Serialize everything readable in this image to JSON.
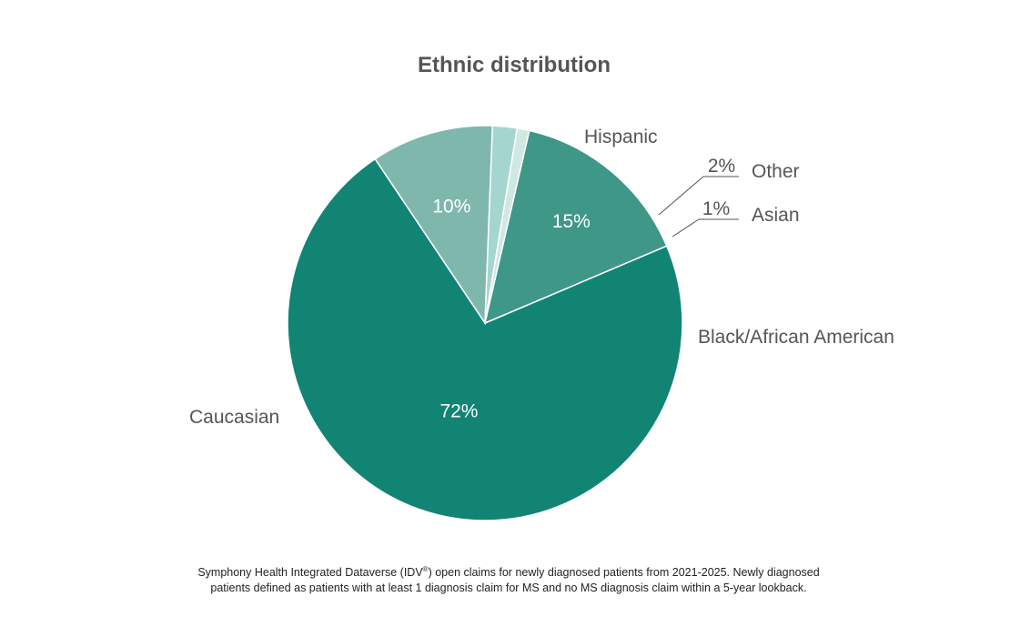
{
  "chart_data": {
    "type": "pie",
    "title": "Ethnic distribution",
    "slices": [
      {
        "label": "Caucasian",
        "value": 72,
        "value_label": "72%",
        "color": "#128474"
      },
      {
        "label": "Hispanic",
        "value": 10,
        "value_label": "10%",
        "color": "#80b7ad"
      },
      {
        "label": "Other",
        "value": 2,
        "value_label": "2%",
        "color": "#a5d5cf"
      },
      {
        "label": "Asian",
        "value": 1,
        "value_label": "1%",
        "color": "#cfe8e3"
      },
      {
        "label": "Black/African American",
        "value": 15,
        "value_label": "15%",
        "color": "#3e9787"
      }
    ]
  },
  "footnote": {
    "part1": "Symphony Health Integrated Dataverse (IDV",
    "registered": "®",
    "part2": ") open claims for newly diagnosed patients from 2021-2025. Newly diagnosed",
    "line2": "patients defined as patients with at least 1 diagnosis claim for MS and no MS diagnosis claim within a 5-year lookback."
  }
}
